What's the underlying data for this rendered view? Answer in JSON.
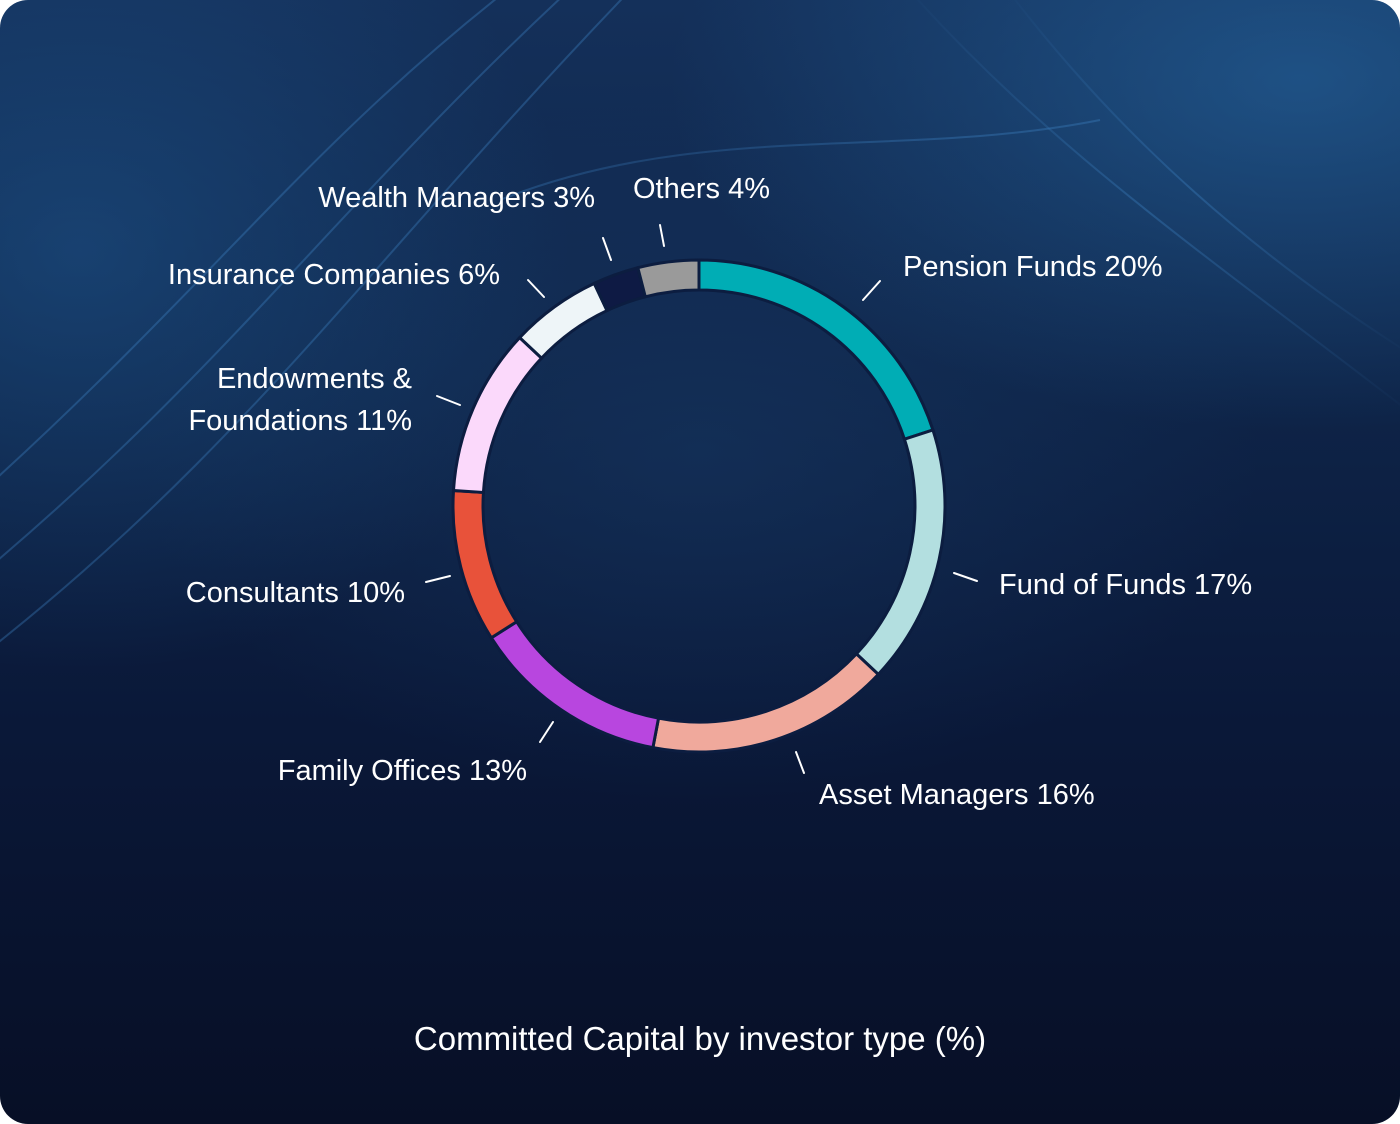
{
  "chart_data": {
    "type": "pie",
    "title": "Committed Capital by investor type (%)",
    "categories": [
      "Pension Funds",
      "Fund of Funds",
      "Asset Managers",
      "Family Offices",
      "Consultants",
      "Endowments & Foundations",
      "Insurance Companies",
      "Wealth Managers",
      "Others"
    ],
    "values": [
      20,
      17,
      16,
      13,
      10,
      11,
      6,
      3,
      4
    ],
    "labels": [
      [
        "Pension Funds 20%"
      ],
      [
        "Fund of Funds 17%"
      ],
      [
        "Asset Managers 16%"
      ],
      [
        "Family Offices 13%"
      ],
      [
        "Consultants 10%"
      ],
      [
        "Endowments &",
        "Foundations 11%"
      ],
      [
        "Insurance Companies 6%"
      ],
      [
        "Wealth Managers 3%"
      ],
      [
        "Others 4%"
      ]
    ],
    "colors": [
      "#00adb5",
      "#b3dfe0",
      "#f0a99c",
      "#b846df",
      "#e8523a",
      "#fbd9fb",
      "#eef5f8",
      "#0e1a44",
      "#9a9a9a"
    ],
    "legend": "none"
  }
}
